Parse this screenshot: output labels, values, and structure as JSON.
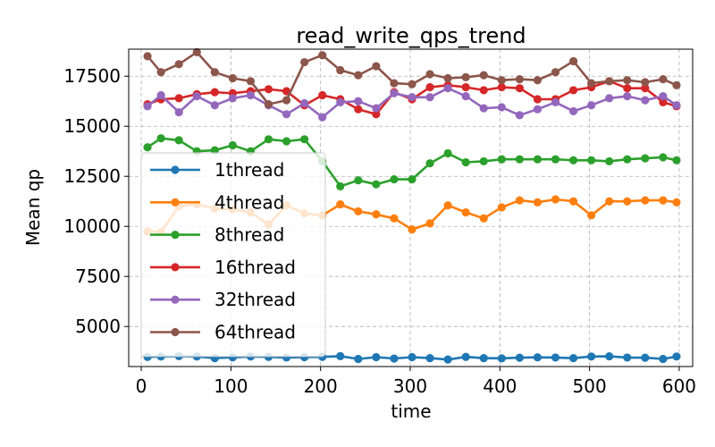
{
  "chart_data": {
    "type": "line",
    "title": "read_write_qps_trend",
    "xlabel": "time",
    "ylabel": "Mean qp",
    "xlim": [
      -14,
      615
    ],
    "ylim": [
      3000,
      18850
    ],
    "xticks": [
      0,
      100,
      200,
      300,
      400,
      500,
      600
    ],
    "yticks": [
      5000,
      7500,
      10000,
      12500,
      15000,
      17500
    ],
    "grid": true,
    "legend_position": "center-left",
    "x": [
      7,
      22,
      42,
      62,
      82,
      102,
      122,
      142,
      162,
      182,
      202,
      222,
      242,
      262,
      282,
      302,
      322,
      342,
      362,
      382,
      402,
      422,
      442,
      462,
      482,
      502,
      522,
      542,
      562,
      582,
      597
    ],
    "series": [
      {
        "name": "1thread",
        "color": "#1f77b4",
        "values": [
          3480,
          3500,
          3520,
          3500,
          3420,
          3460,
          3500,
          3480,
          3450,
          3470,
          3480,
          3520,
          3380,
          3470,
          3400,
          3470,
          3420,
          3350,
          3480,
          3420,
          3410,
          3440,
          3460,
          3450,
          3420,
          3500,
          3510,
          3450,
          3440,
          3380,
          3500
        ]
      },
      {
        "name": "4thread",
        "color": "#ff7f0e",
        "values": [
          9750,
          9720,
          11000,
          11100,
          10900,
          10850,
          10700,
          10100,
          11050,
          10650,
          10550,
          11100,
          10750,
          10600,
          10400,
          9850,
          10150,
          11050,
          10700,
          10400,
          10950,
          11300,
          11200,
          11350,
          11250,
          10550,
          11250,
          11250,
          11300,
          11300,
          11200
        ]
      },
      {
        "name": "8thread",
        "color": "#2ca02c",
        "values": [
          13950,
          14400,
          14300,
          13750,
          13800,
          14050,
          13750,
          14350,
          14250,
          14350,
          13250,
          12000,
          12300,
          12100,
          12350,
          12350,
          13150,
          13650,
          13200,
          13250,
          13350,
          13350,
          13350,
          13350,
          13300,
          13300,
          13250,
          13350,
          13400,
          13450,
          13300
        ]
      },
      {
        "name": "16thread",
        "color": "#d62728",
        "values": [
          16100,
          16350,
          16400,
          16600,
          16700,
          16650,
          16750,
          16850,
          16750,
          16050,
          16550,
          16350,
          15850,
          15600,
          16700,
          16350,
          16950,
          17050,
          16950,
          16800,
          16950,
          16900,
          16350,
          16350,
          16800,
          16950,
          17250,
          16900,
          16900,
          16200,
          16000
        ]
      },
      {
        "name": "32thread",
        "color": "#9467bd",
        "values": [
          16000,
          16550,
          15700,
          16500,
          16050,
          16400,
          16550,
          16050,
          15600,
          16150,
          15450,
          16200,
          16250,
          15900,
          16650,
          16450,
          16450,
          16900,
          16500,
          15900,
          15950,
          15550,
          15850,
          16200,
          15750,
          16050,
          16400,
          16500,
          16300,
          16500,
          16050
        ]
      },
      {
        "name": "64thread",
        "color": "#8c564b",
        "values": [
          18500,
          17700,
          18100,
          18700,
          17700,
          17400,
          17250,
          16100,
          16300,
          18200,
          18550,
          17800,
          17550,
          18000,
          17150,
          17100,
          17600,
          17400,
          17450,
          17550,
          17300,
          17350,
          17300,
          17700,
          18250,
          17150,
          17250,
          17300,
          17200,
          17350,
          17050
        ]
      }
    ]
  }
}
